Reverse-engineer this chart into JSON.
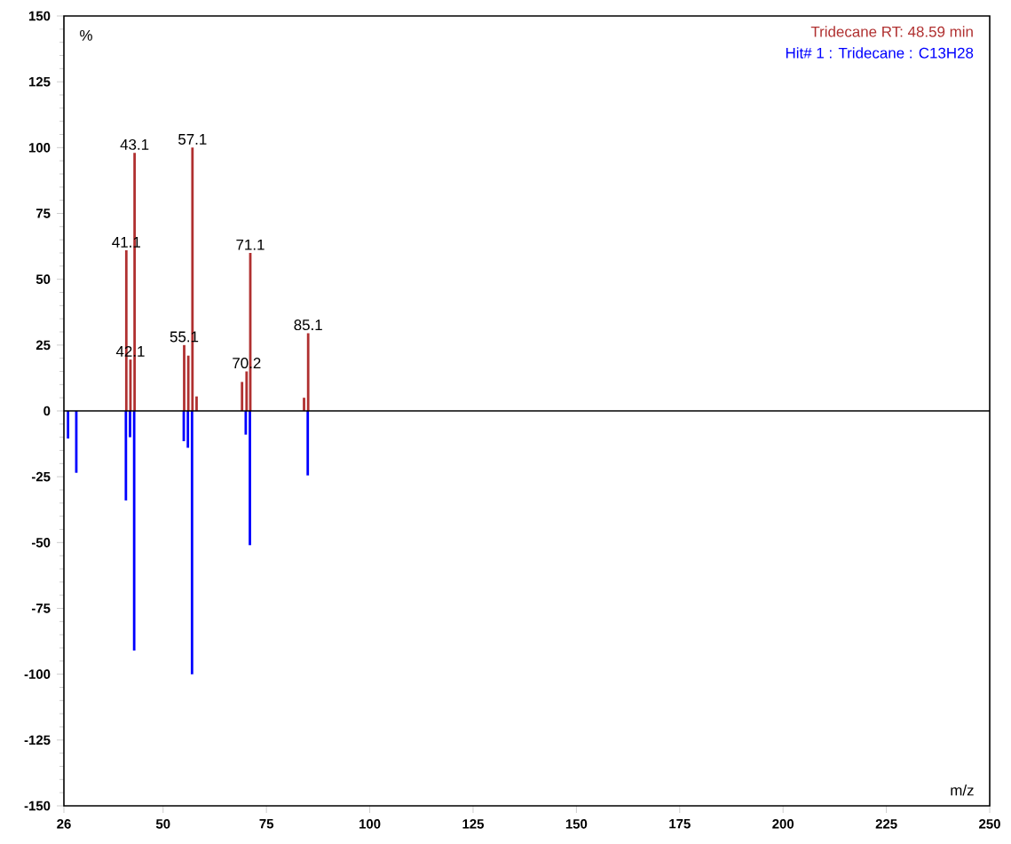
{
  "chart_data": {
    "type": "bar",
    "xlabel": "m/z",
    "ylabel": "%",
    "xlim": [
      26,
      250
    ],
    "xticks": [
      26,
      50,
      75,
      100,
      125,
      150,
      175,
      200,
      225,
      250
    ],
    "ylim": [
      -150,
      150
    ],
    "yticks": [
      -150,
      -125,
      -100,
      -75,
      -50,
      -25,
      0,
      25,
      50,
      75,
      100,
      125,
      150
    ],
    "series": [
      {
        "name": "Tridecane  RT: 48.59 min",
        "color": "#b03030",
        "x": [
          41.1,
          42.1,
          43.1,
          55.1,
          56.1,
          57.1,
          58.1,
          69.1,
          70.2,
          71.1,
          84.1,
          85.1
        ],
        "values": [
          61,
          19.5,
          98,
          25,
          21,
          100,
          5.5,
          11,
          15,
          60,
          5,
          29.5
        ]
      },
      {
        "name": "Hit# 1 : Tridecane : C13H28",
        "color": "#0000ff",
        "x": [
          27,
          29,
          41,
          42,
          43,
          55,
          56,
          57,
          70,
          71,
          85
        ],
        "values": [
          -10.5,
          -23.5,
          -34,
          -10,
          -91,
          -11.5,
          -14,
          -100,
          -9,
          -51,
          -24.5
        ]
      }
    ],
    "ref_lines": [
      {
        "axis": "y",
        "value": 0,
        "color": "#000000"
      }
    ],
    "annotations": [
      {
        "text": "41.1",
        "x": 41.1,
        "y": 61
      },
      {
        "text": "42.1",
        "x": 42.1,
        "y": 19.5
      },
      {
        "text": "43.1",
        "x": 43.1,
        "y": 98
      },
      {
        "text": "55.1",
        "x": 55.1,
        "y": 25
      },
      {
        "text": "57.1",
        "x": 57.1,
        "y": 100
      },
      {
        "text": "70.2",
        "x": 70.2,
        "y": 15
      },
      {
        "text": "71.1",
        "x": 71.1,
        "y": 60
      },
      {
        "text": "85.1",
        "x": 85.1,
        "y": 29.5
      }
    ]
  }
}
